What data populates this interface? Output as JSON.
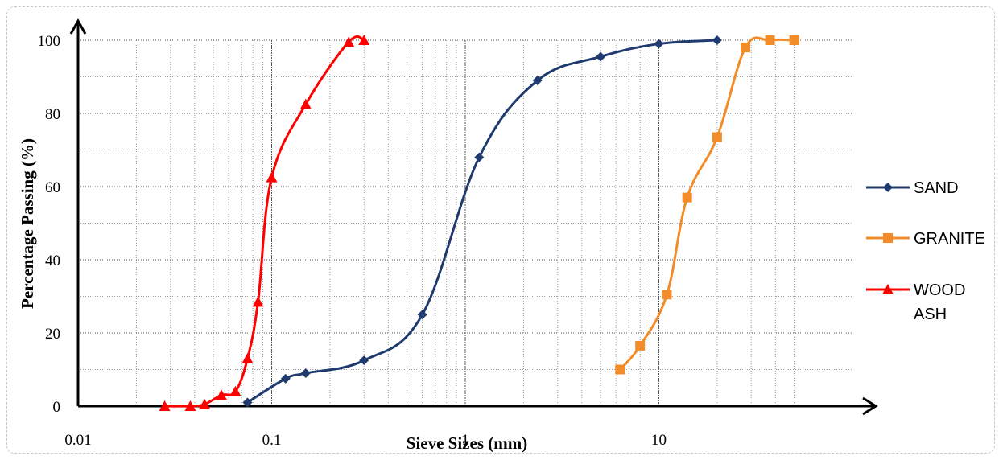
{
  "chart_data": {
    "type": "line",
    "xscale": "log",
    "xlim": [
      0.01,
      50
    ],
    "ylim": [
      0,
      100
    ],
    "xlabel": "Sieve Sizes (mm)",
    "ylabel": "Percentage Passing (%)",
    "x_ticks": [
      "0.01",
      "0.1",
      "1",
      "10"
    ],
    "y_ticks": [
      "0",
      "20",
      "40",
      "60",
      "80",
      "100"
    ],
    "grid": true,
    "legend_position": "right",
    "series": [
      {
        "name": "SAND",
        "color": "#1f3a6e",
        "marker": "diamond",
        "x": [
          0.075,
          0.118,
          0.15,
          0.3,
          0.6,
          1.18,
          2.36,
          5.0,
          10.0,
          20.0
        ],
        "y": [
          1,
          7.5,
          9,
          12.5,
          25,
          68,
          89,
          95.5,
          99,
          100
        ]
      },
      {
        "name": "GRANITE",
        "color": "#f28c28",
        "marker": "square",
        "x": [
          6.3,
          8.0,
          11.0,
          14.0,
          20.0,
          28.0,
          37.5,
          50.0
        ],
        "y": [
          10,
          16.5,
          30.5,
          57,
          73.5,
          98,
          100,
          100
        ]
      },
      {
        "name": "WOOD ASH",
        "label_lines": [
          "WOOD",
          "ASH"
        ],
        "color": "#ff0000",
        "marker": "triangle",
        "x": [
          0.028,
          0.038,
          0.045,
          0.055,
          0.065,
          0.075,
          0.085,
          0.1,
          0.15,
          0.25,
          0.3
        ],
        "y": [
          0,
          0,
          0.5,
          3,
          4,
          13,
          28.5,
          62.5,
          82.5,
          99.5,
          100
        ]
      }
    ]
  }
}
